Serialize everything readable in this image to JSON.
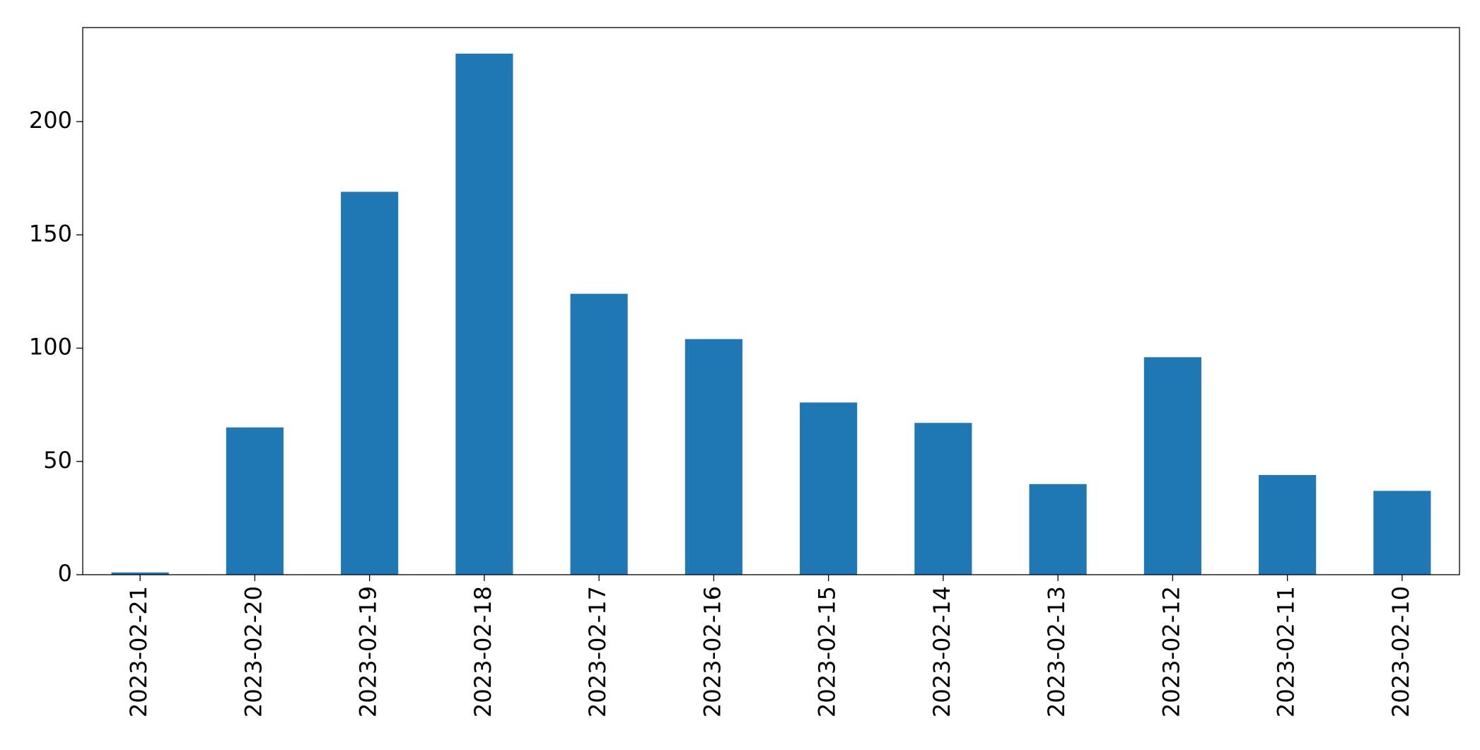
{
  "chart_data": {
    "type": "bar",
    "categories": [
      "2023-02-21",
      "2023-02-20",
      "2023-02-19",
      "2023-02-18",
      "2023-02-17",
      "2023-02-16",
      "2023-02-15",
      "2023-02-14",
      "2023-02-13",
      "2023-02-12",
      "2023-02-11",
      "2023-02-10"
    ],
    "values": [
      1,
      65,
      169,
      230,
      124,
      104,
      76,
      67,
      40,
      96,
      44,
      37
    ],
    "color": "#1f77b4",
    "ylim": [
      0,
      241.5
    ],
    "yticks": [
      0,
      50,
      100,
      150,
      200
    ],
    "grid": false
  }
}
